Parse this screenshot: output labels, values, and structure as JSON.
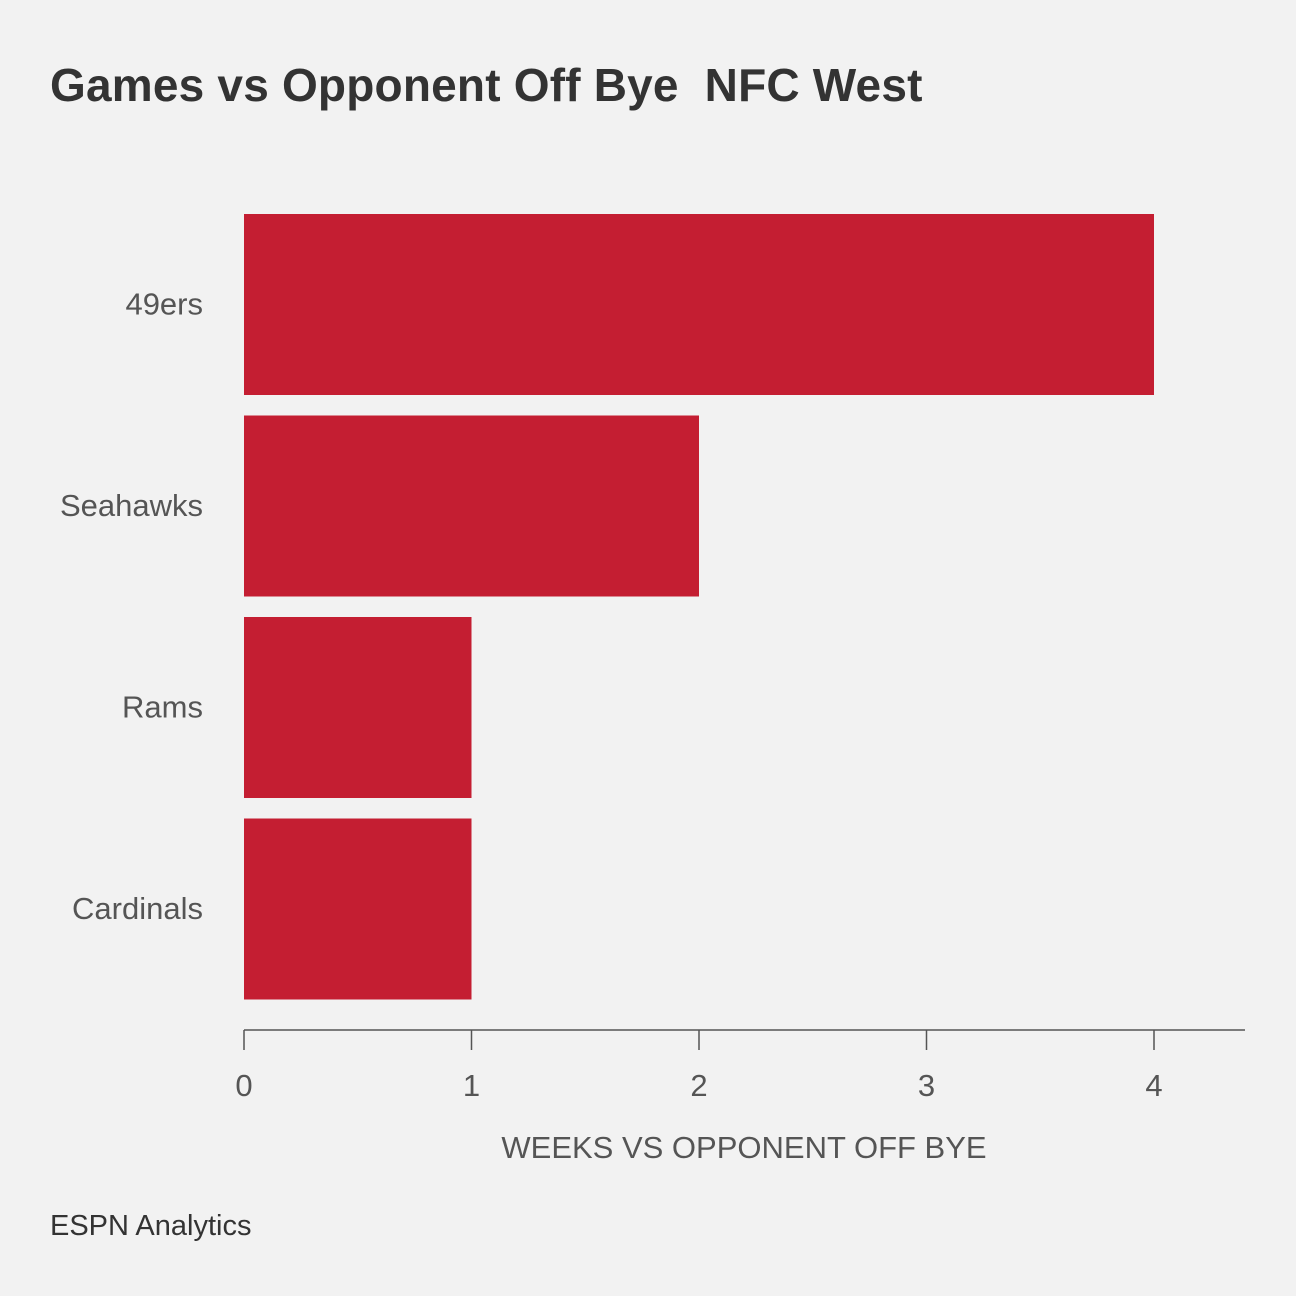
{
  "chart_data": {
    "type": "bar",
    "orientation": "horizontal",
    "title": "Games vs Opponent Off Bye  NFC West",
    "xlabel": "WEEKS VS OPPONENT OFF BYE",
    "ylabel": "",
    "categories": [
      "49ers",
      "Seahawks",
      "Rams",
      "Cardinals"
    ],
    "values": [
      4,
      2,
      1,
      1
    ],
    "xlim": [
      0,
      4.4
    ],
    "xticks": [
      0,
      1,
      2,
      3,
      4
    ],
    "grid": false,
    "legend": "none",
    "bar_color": "#c41e32"
  },
  "source": "ESPN Analytics"
}
